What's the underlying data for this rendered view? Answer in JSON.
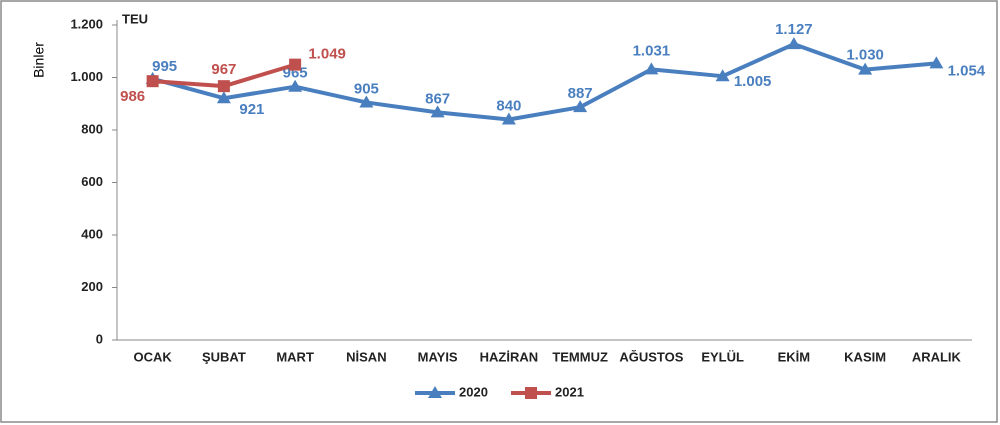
{
  "chart_data": {
    "type": "line",
    "y_label": "Binler",
    "unit_label": "TEU",
    "categories": [
      "OCAK",
      "ŞUBAT",
      "MART",
      "NİSAN",
      "MAYIS",
      "HAZİRAN",
      "TEMMUZ",
      "AĞUSTOS",
      "EYLÜL",
      "EKİM",
      "KASIM",
      "ARALIK"
    ],
    "series": [
      {
        "name": "2020",
        "color": "#4a7fbf",
        "marker": "triangle",
        "values": [
          995,
          921,
          965,
          905,
          867,
          840,
          887,
          1031,
          1005,
          1127,
          1030,
          1054
        ],
        "value_labels": [
          "995",
          "921",
          "965",
          "905",
          "867",
          "840",
          "887",
          "1.031",
          "1.005",
          "1.127",
          "1.030",
          "1.054"
        ]
      },
      {
        "name": "2021",
        "color": "#c0504d",
        "marker": "square",
        "values": [
          986,
          967,
          1049,
          null,
          null,
          null,
          null,
          null,
          null,
          null,
          null,
          null
        ],
        "value_labels": [
          "986",
          "967",
          "1.049",
          null,
          null,
          null,
          null,
          null,
          null,
          null,
          null,
          null
        ]
      }
    ],
    "ylim": [
      0,
      1200
    ],
    "yticks": [
      0,
      200,
      400,
      600,
      800,
      {
        "value": 1000,
        "label": "1.000"
      },
      {
        "value": 1200,
        "label": "1.200"
      }
    ],
    "legend": "bottom"
  }
}
